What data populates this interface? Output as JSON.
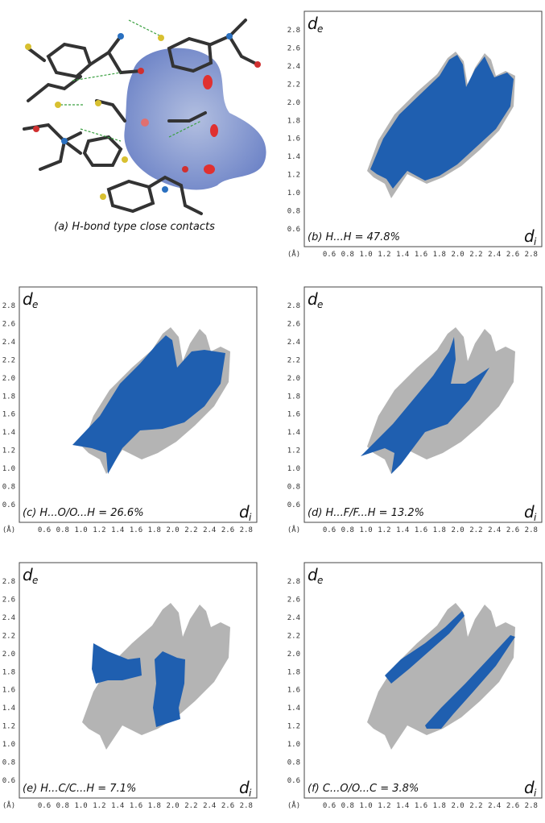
{
  "figure_a": {
    "caption": "(a) H-bond type close contacts"
  },
  "axes": {
    "y_label": "d",
    "y_sub": "e",
    "x_label": "d",
    "x_sub": "i",
    "unit": "(Å)",
    "yticks": [
      "2.8",
      "2.6",
      "2.4",
      "2.2",
      "2.0",
      "1.8",
      "1.6",
      "1.4",
      "1.2",
      "1.0",
      "0.8",
      "0.6"
    ],
    "xticks": [
      "0.6",
      "0.8",
      "1.0",
      "1.2",
      "1.4",
      "1.6",
      "1.8",
      "2.0",
      "2.2",
      "2.4",
      "2.6",
      "2.8"
    ]
  },
  "panels": [
    {
      "caption": "(b) H...H = 47.8%"
    },
    {
      "caption": "(c) H...O/O...H = 26.6%"
    },
    {
      "caption": "(d) H...F/F...H = 13.2%"
    },
    {
      "caption": "(e) H...C/C...H = 7.1%"
    },
    {
      "caption": "(f) C...O/O...C = 3.8%"
    }
  ]
}
